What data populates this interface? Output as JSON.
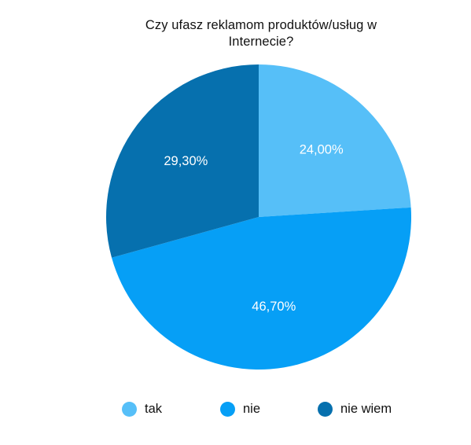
{
  "chart_data": {
    "type": "pie",
    "title_lines": [
      "Czy ufasz reklamom produktów/usług w",
      "Internecie?"
    ],
    "categories": [
      "tak",
      "nie",
      "nie wiem"
    ],
    "values": [
      24.0,
      46.7,
      29.3
    ],
    "value_labels": [
      "24,00%",
      "46,70%",
      "29,30%"
    ],
    "colors": [
      "#56bff8",
      "#069ff6",
      "#0670ae"
    ],
    "legend_position": "bottom"
  }
}
